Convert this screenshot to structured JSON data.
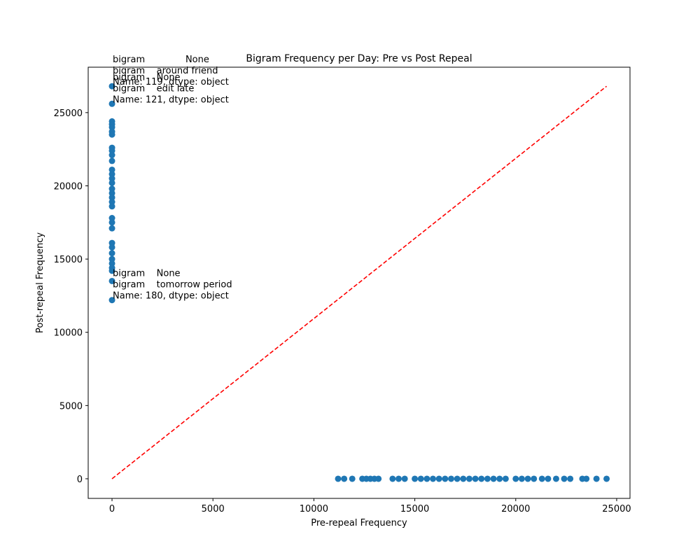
{
  "chart_data": {
    "type": "scatter",
    "title": "Bigram Frequency per Day: Pre vs Post Repeal",
    "x_label": "Pre-repeal Frequency",
    "y_label": "Post-repeal Frequency",
    "color": "#1f77b4",
    "x": [
      0,
      0,
      0,
      0,
      0,
      0,
      0,
      0,
      0,
      0,
      0,
      0,
      0,
      0,
      0,
      0,
      0,
      0,
      0,
      0,
      0,
      0,
      0,
      0,
      0,
      0,
      0,
      0,
      0,
      0,
      0,
      0,
      11200,
      11500,
      11900,
      12400,
      12600,
      12800,
      13000,
      13200,
      13900,
      14200,
      14500,
      15000,
      15300,
      15600,
      15900,
      16200,
      16500,
      16800,
      17100,
      17400,
      17700,
      18000,
      18300,
      18600,
      18900,
      19200,
      19500,
      20000,
      20300,
      20600,
      20900,
      21300,
      21600,
      22000,
      22400,
      22700,
      23300,
      23500,
      24000,
      24500
    ],
    "y": [
      26800,
      25600,
      24400,
      24200,
      24000,
      23700,
      23500,
      22600,
      22400,
      22100,
      21700,
      21100,
      20800,
      20500,
      20200,
      19800,
      19500,
      19200,
      18900,
      18600,
      17800,
      17500,
      17100,
      16100,
      15800,
      15400,
      15000,
      14700,
      14400,
      14200,
      13500,
      12200,
      0,
      0,
      0,
      0,
      0,
      0,
      0,
      0,
      0,
      0,
      0,
      0,
      0,
      0,
      0,
      0,
      0,
      0,
      0,
      0,
      0,
      0,
      0,
      0,
      0,
      0,
      0,
      0,
      0,
      0,
      0,
      0,
      0,
      0,
      0,
      0,
      0,
      0,
      0,
      0
    ],
    "reference_line": {
      "x": [
        0,
        24500
      ],
      "y": [
        0,
        26800
      ],
      "color": "#ff0000",
      "style": "dashed"
    },
    "annotations": [
      {
        "lines": [
          "bigram              None",
          "bigram    around friend",
          "Name: 119, dtype: object"
        ],
        "x": 0,
        "y": 26800
      },
      {
        "lines": [
          "bigram    None",
          "bigram    edit late",
          "Name: 121, dtype: object"
        ],
        "x": 0,
        "y": 25600
      },
      {
        "lines": [
          "bigram    None",
          "bigram    tomorrow period",
          "Name: 180, dtype: object"
        ],
        "x": 0,
        "y": 12200
      }
    ],
    "xlim": [
      -1180,
      25660
    ],
    "ylim": [
      -1340,
      28100
    ],
    "xticks": [
      0,
      5000,
      10000,
      15000,
      20000,
      25000
    ],
    "yticks": [
      0,
      5000,
      10000,
      15000,
      20000,
      25000
    ]
  }
}
